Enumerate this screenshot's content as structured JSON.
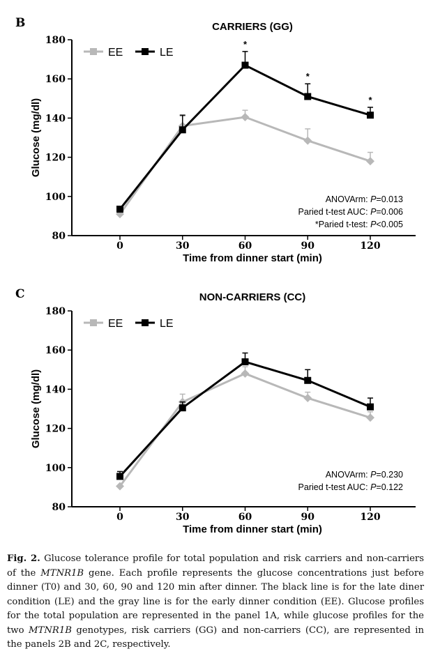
{
  "chart_data": [
    {
      "type": "line",
      "panel": "B",
      "title": "CARRIERS (GG)",
      "xlabel": "Time from dinner start (min)",
      "ylabel": "Glucose (mg/dl)",
      "x": [
        0,
        30,
        60,
        90,
        120
      ],
      "xticks": [
        "0",
        "30",
        "60",
        "90",
        "120"
      ],
      "ylim": [
        80,
        180
      ],
      "yticks": [
        "80",
        "100",
        "120",
        "140",
        "160",
        "180"
      ],
      "legend_position": "top-left",
      "series": [
        {
          "name": "EE",
          "color": "#b8b8b8",
          "marker": "diamond",
          "values": [
            91,
            136,
            140.5,
            128.5,
            118
          ],
          "errors": [
            0,
            5,
            3.5,
            6,
            4.5
          ]
        },
        {
          "name": "LE",
          "color": "#000000",
          "marker": "square",
          "values": [
            93.5,
            134,
            167,
            151,
            141.5
          ],
          "errors": [
            0,
            7.5,
            7,
            6.5,
            4
          ]
        }
      ],
      "significance": [
        "",
        "",
        "*",
        "*",
        "*"
      ],
      "stats": [
        {
          "label": "ANOVArm: ",
          "italic": "P",
          "value": "=0.013"
        },
        {
          "label": "Paried t-test AUC: ",
          "italic": "P",
          "value": "=0.006"
        },
        {
          "label": "*Paried t-test: ",
          "italic": "P",
          "value": "<0.005"
        }
      ]
    },
    {
      "type": "line",
      "panel": "C",
      "title": "NON-CARRIERS (CC)",
      "xlabel": "Time from dinner start (min)",
      "ylabel": "Glucose (mg/dl)",
      "x": [
        0,
        30,
        60,
        90,
        120
      ],
      "xticks": [
        "0",
        "30",
        "60",
        "90",
        "120"
      ],
      "ylim": [
        80,
        180
      ],
      "yticks": [
        "80",
        "100",
        "120",
        "140",
        "160",
        "180"
      ],
      "legend_position": "top-left",
      "series": [
        {
          "name": "EE",
          "color": "#b8b8b8",
          "marker": "diamond",
          "values": [
            90.5,
            133.5,
            148,
            135.5,
            125.5
          ],
          "errors": [
            0,
            4,
            3.5,
            3,
            3
          ]
        },
        {
          "name": "LE",
          "color": "#000000",
          "marker": "square",
          "values": [
            95.5,
            130.5,
            154,
            144.5,
            131
          ],
          "errors": [
            2.5,
            3,
            4.5,
            5.5,
            4.5
          ]
        }
      ],
      "significance": [
        "",
        "",
        "",
        "",
        ""
      ],
      "stats": [
        {
          "label": "ANOVArm: ",
          "italic": "P",
          "value": "=0.230"
        },
        {
          "label": "Paried t-test AUC: ",
          "italic": "P",
          "value": "=0.122"
        }
      ]
    }
  ],
  "caption": {
    "label": "Fig. 2.",
    "parts": [
      {
        "t": "  Glucose tolerance profile for total population and risk carriers and non-carriers of the ",
        "i": false
      },
      {
        "t": "MTNR1B",
        "i": true
      },
      {
        "t": " gene. Each profile represents the glucose concentrations just before dinner (T0) and 30, 60, 90 and 120 min after dinner. The black line is for the late diner condition (LE) and the gray line is for the early dinner condition (EE). Glucose profiles for the total population are represented in the panel 1A, while glucose profiles for the two ",
        "i": false
      },
      {
        "t": "MTNR1B",
        "i": true
      },
      {
        "t": " genotypes, risk carriers (GG) and non-carriers (CC), are represented in the panels 2B and 2C, respectively.",
        "i": false
      }
    ]
  }
}
